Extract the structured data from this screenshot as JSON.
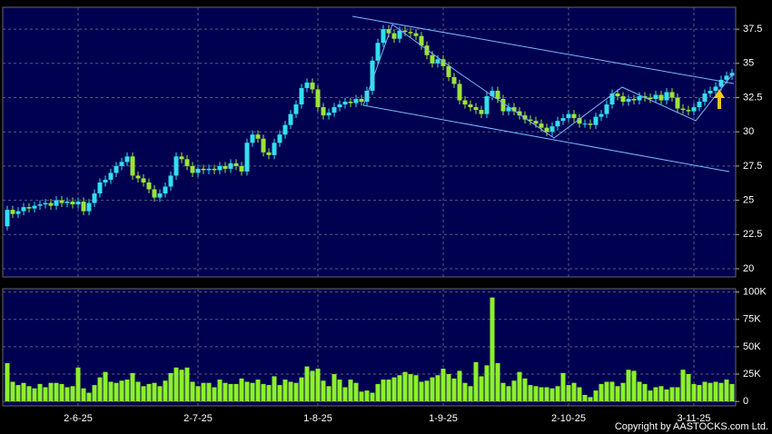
{
  "chart_data": [
    {
      "type": "candlestick",
      "categories": [
        null,
        null,
        null,
        null,
        null,
        null,
        null,
        null,
        null,
        null,
        null,
        null,
        null,
        "2-6-25",
        null,
        null,
        null,
        null,
        null,
        null,
        null,
        null,
        null,
        null,
        null,
        null,
        null,
        null,
        null,
        null,
        null,
        null,
        null,
        null,
        null,
        "2-7-25",
        null,
        null,
        null,
        null,
        null,
        null,
        null,
        null,
        null,
        null,
        null,
        null,
        null,
        null,
        null,
        null,
        null,
        null,
        null,
        null,
        null,
        "1-8-25",
        null,
        null,
        null,
        null,
        null,
        null,
        null,
        null,
        null,
        null,
        null,
        null,
        null,
        null,
        null,
        null,
        null,
        null,
        null,
        null,
        null,
        null,
        "1-9-25",
        null,
        null,
        null,
        null,
        null,
        null,
        null,
        null,
        null,
        null,
        null,
        null,
        null,
        null,
        null,
        null,
        null,
        null,
        null,
        null,
        null,
        null,
        "2-10-25",
        null,
        null,
        null,
        null,
        null,
        null,
        null,
        null,
        null,
        null,
        null,
        null,
        null,
        null,
        null,
        null,
        null,
        null,
        null,
        null,
        null,
        null,
        "3-11-25",
        null,
        null,
        null,
        null,
        null,
        null,
        null
      ],
      "open": [
        23.1,
        24.3,
        24.0,
        24.2,
        24.5,
        24.4,
        24.6,
        24.7,
        24.8,
        24.6,
        25.0,
        24.8,
        24.9,
        24.7,
        24.9,
        24.2,
        24.8,
        25.5,
        26.3,
        26.5,
        27.0,
        27.5,
        27.8,
        28.2,
        26.8,
        26.6,
        26.3,
        25.8,
        25.2,
        25.5,
        26.0,
        26.8,
        28.2,
        28.0,
        27.5,
        27.0,
        27.3,
        27.2,
        27.3,
        27.2,
        27.5,
        27.3,
        27.7,
        27.5,
        27.1,
        29.2,
        29.8,
        29.5,
        28.5,
        28.3,
        29.2,
        29.8,
        30.5,
        31.3,
        32.0,
        33.2,
        33.6,
        33.1,
        31.8,
        31.2,
        31.4,
        31.8,
        32.0,
        32.2,
        32.1,
        32.4,
        32.2,
        33.0,
        35.2,
        36.5,
        37.5,
        37.2,
        36.8,
        37.4,
        37.3,
        37.2,
        37.0,
        36.3,
        35.6,
        35.0,
        35.3,
        34.8,
        34.0,
        33.5,
        32.3,
        32.0,
        31.8,
        31.6,
        31.3,
        32.6,
        33.0,
        32.4,
        31.5,
        31.8,
        31.5,
        31.2,
        30.9,
        30.8,
        30.6,
        30.3,
        30.0,
        30.4,
        30.8,
        31.0,
        31.3,
        31.0,
        30.6,
        30.6,
        30.5,
        31.1,
        31.3,
        32.0,
        32.8,
        32.6,
        32.2,
        32.4,
        32.3,
        32.6,
        32.5,
        32.4,
        32.7,
        32.3,
        32.9,
        32.5,
        31.7,
        31.6,
        31.5,
        31.8,
        32.2,
        32.8,
        33.0,
        33.3,
        33.8,
        34.1
      ],
      "high": [
        24.6,
        24.6,
        24.5,
        24.8,
        24.8,
        24.9,
        25.0,
        25.1,
        25.1,
        25.3,
        25.3,
        25.2,
        25.2,
        25.2,
        25.2,
        25.1,
        25.8,
        26.6,
        26.8,
        27.3,
        27.8,
        28.1,
        28.5,
        28.5,
        27.1,
        26.9,
        26.6,
        26.1,
        25.8,
        26.3,
        27.1,
        28.5,
        28.5,
        28.3,
        27.8,
        27.6,
        27.6,
        27.6,
        27.6,
        27.8,
        27.8,
        28.0,
        28.0,
        27.8,
        29.5,
        30.1,
        30.1,
        29.8,
        28.8,
        29.5,
        30.1,
        30.8,
        31.6,
        32.3,
        33.5,
        33.9,
        33.9,
        33.4,
        32.1,
        31.7,
        32.1,
        32.3,
        32.5,
        32.5,
        32.7,
        32.7,
        33.3,
        35.5,
        36.8,
        37.8,
        37.8,
        37.5,
        37.7,
        37.7,
        37.6,
        37.5,
        37.3,
        36.6,
        35.9,
        35.6,
        35.6,
        35.1,
        34.3,
        33.8,
        32.6,
        32.3,
        32.1,
        31.9,
        32.9,
        33.3,
        33.3,
        32.7,
        32.1,
        32.1,
        31.8,
        31.5,
        31.2,
        31.1,
        30.9,
        30.6,
        30.7,
        31.1,
        31.3,
        31.6,
        31.6,
        31.3,
        30.9,
        30.9,
        31.4,
        31.6,
        32.3,
        33.1,
        33.1,
        32.9,
        32.7,
        32.7,
        32.9,
        32.9,
        32.8,
        33.0,
        33.0,
        33.2,
        33.2,
        32.8,
        32.0,
        31.9,
        32.1,
        32.5,
        33.1,
        33.3,
        33.6,
        34.1,
        34.4,
        34.6
      ],
      "low": [
        22.8,
        23.7,
        23.7,
        23.9,
        24.1,
        24.1,
        24.3,
        24.4,
        24.3,
        24.3,
        24.5,
        24.5,
        24.4,
        24.4,
        23.9,
        23.9,
        24.5,
        25.2,
        26.0,
        26.2,
        26.7,
        27.2,
        27.5,
        26.5,
        26.3,
        26.0,
        25.5,
        24.9,
        24.9,
        25.2,
        25.7,
        26.5,
        27.7,
        27.2,
        26.7,
        26.7,
        26.9,
        26.9,
        26.9,
        26.9,
        27.0,
        27.0,
        27.2,
        26.8,
        26.8,
        28.9,
        29.2,
        28.2,
        28.0,
        28.0,
        28.9,
        29.5,
        30.2,
        31.0,
        31.7,
        32.9,
        32.8,
        31.5,
        30.9,
        30.9,
        31.1,
        31.5,
        31.7,
        31.8,
        31.8,
        31.9,
        31.9,
        32.7,
        34.9,
        36.2,
        36.9,
        36.5,
        36.5,
        37.0,
        36.9,
        36.7,
        36.0,
        35.3,
        34.7,
        34.7,
        34.5,
        33.7,
        33.2,
        32.0,
        31.7,
        31.5,
        31.3,
        31.0,
        31.0,
        32.3,
        32.1,
        31.2,
        31.2,
        31.2,
        30.9,
        30.6,
        30.5,
        30.3,
        30.0,
        29.7,
        29.7,
        30.1,
        30.5,
        30.7,
        30.7,
        30.3,
        30.3,
        30.2,
        30.2,
        30.8,
        31.0,
        31.7,
        32.3,
        31.9,
        31.9,
        32.0,
        32.0,
        32.2,
        32.1,
        32.1,
        32.0,
        32.0,
        32.2,
        31.4,
        31.3,
        31.2,
        31.2,
        31.5,
        31.9,
        32.5,
        32.7,
        33.0,
        33.5,
        33.8
      ],
      "close": [
        24.3,
        24.0,
        24.2,
        24.5,
        24.4,
        24.6,
        24.7,
        24.8,
        24.6,
        25.0,
        24.8,
        24.9,
        24.7,
        24.9,
        24.2,
        24.8,
        25.5,
        26.3,
        26.5,
        27.0,
        27.5,
        27.8,
        28.2,
        26.8,
        26.6,
        26.3,
        25.8,
        25.2,
        25.5,
        26.0,
        26.8,
        28.2,
        28.0,
        27.5,
        27.0,
        27.3,
        27.2,
        27.3,
        27.2,
        27.5,
        27.3,
        27.7,
        27.5,
        27.1,
        29.2,
        29.8,
        29.5,
        28.5,
        28.3,
        29.2,
        29.8,
        30.5,
        31.3,
        32.0,
        33.2,
        33.6,
        33.1,
        31.8,
        31.2,
        31.4,
        31.8,
        32.0,
        32.2,
        32.1,
        32.4,
        32.2,
        33.0,
        35.2,
        36.5,
        37.5,
        37.2,
        36.8,
        37.4,
        37.3,
        37.2,
        37.0,
        36.3,
        35.6,
        35.0,
        35.3,
        34.8,
        34.0,
        33.5,
        32.3,
        32.0,
        31.8,
        31.6,
        31.3,
        32.6,
        33.0,
        32.4,
        31.5,
        31.8,
        31.5,
        31.2,
        30.9,
        30.8,
        30.6,
        30.3,
        30.0,
        30.4,
        30.8,
        31.0,
        31.3,
        31.0,
        30.6,
        30.6,
        30.5,
        31.1,
        31.3,
        32.0,
        32.8,
        32.6,
        32.2,
        32.4,
        32.3,
        32.6,
        32.5,
        32.4,
        32.7,
        32.3,
        32.9,
        32.5,
        31.7,
        31.6,
        31.5,
        31.8,
        32.2,
        32.8,
        33.0,
        33.3,
        33.8,
        34.1,
        34.3
      ],
      "up_color": "#33dff0",
      "down_color": "#9be43a",
      "ylim": [
        19.4,
        39.1
      ],
      "yticks": [
        20,
        22.5,
        25,
        27.5,
        30,
        32.5,
        35,
        37.5
      ],
      "grid": true
    },
    {
      "type": "bar",
      "values": [
        35000,
        18000,
        15000,
        17000,
        14000,
        12000,
        16000,
        13000,
        17000,
        17000,
        16000,
        13000,
        14000,
        31000,
        12000,
        8000,
        15000,
        22000,
        27000,
        18000,
        17000,
        19000,
        20000,
        26000,
        18000,
        14000,
        16000,
        17000,
        14000,
        19000,
        26000,
        31000,
        29000,
        31000,
        18000,
        14000,
        17000,
        17000,
        13000,
        20000,
        17000,
        16000,
        16000,
        21000,
        18000,
        17000,
        20000,
        16000,
        15000,
        23000,
        15000,
        20000,
        18000,
        17000,
        22000,
        32000,
        28000,
        30000,
        19000,
        14000,
        25000,
        20000,
        13000,
        20000,
        17000,
        9000,
        10000,
        8000,
        16000,
        20000,
        20000,
        22000,
        24000,
        27000,
        25000,
        24000,
        18000,
        19000,
        22000,
        24000,
        30000,
        25000,
        21000,
        28000,
        17000,
        14000,
        36000,
        23000,
        33000,
        95000,
        35000,
        17000,
        14000,
        19000,
        27000,
        21000,
        15000,
        14000,
        13000,
        13000,
        12000,
        14000,
        26000,
        15000,
        17000,
        13000,
        6000,
        4000,
        10000,
        16000,
        18000,
        18000,
        14000,
        17000,
        29000,
        28000,
        18000,
        16000,
        10000,
        13000,
        14000,
        11000,
        13000,
        13000,
        29000,
        25000,
        16000,
        15000,
        18000,
        17000,
        18000,
        17000,
        20000,
        16000
      ],
      "color": "#8cf02a",
      "ylim": [
        -4000,
        103000
      ],
      "yticks": [
        0,
        {
          "value": 25000,
          "label": "25K"
        },
        {
          "value": 50000,
          "label": "50K"
        },
        {
          "value": 75000,
          "label": "75K"
        },
        {
          "value": 100000,
          "label": "100K"
        }
      ],
      "grid": true
    }
  ],
  "copyright": "Copyright by AASTOCKS.com Ltd."
}
